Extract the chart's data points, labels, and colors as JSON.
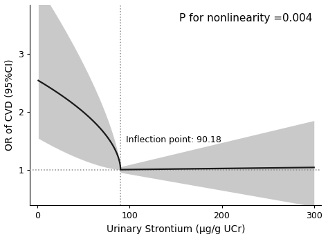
{
  "title_text": "P for nonlinearity =0.004",
  "inflection_label": "Inflection point: 90.18",
  "inflection_x": 90.18,
  "xlabel": "Urinary Strontium (μg/g UCr)",
  "ylabel": "OR of CVD (95%CI)",
  "xlim": [
    -8,
    308
  ],
  "ylim": [
    0.38,
    3.85
  ],
  "yticks": [
    1,
    2,
    3
  ],
  "xticks": [
    0,
    100,
    200,
    300
  ],
  "hline_y": 1.0,
  "bg_color": "#ffffff",
  "line_color": "#1a1a1a",
  "ci_color": "#c0c0c0",
  "dashed_color": "#888888",
  "title_fontsize": 11,
  "label_fontsize": 10,
  "tick_fontsize": 9,
  "inflection_fontsize": 9
}
